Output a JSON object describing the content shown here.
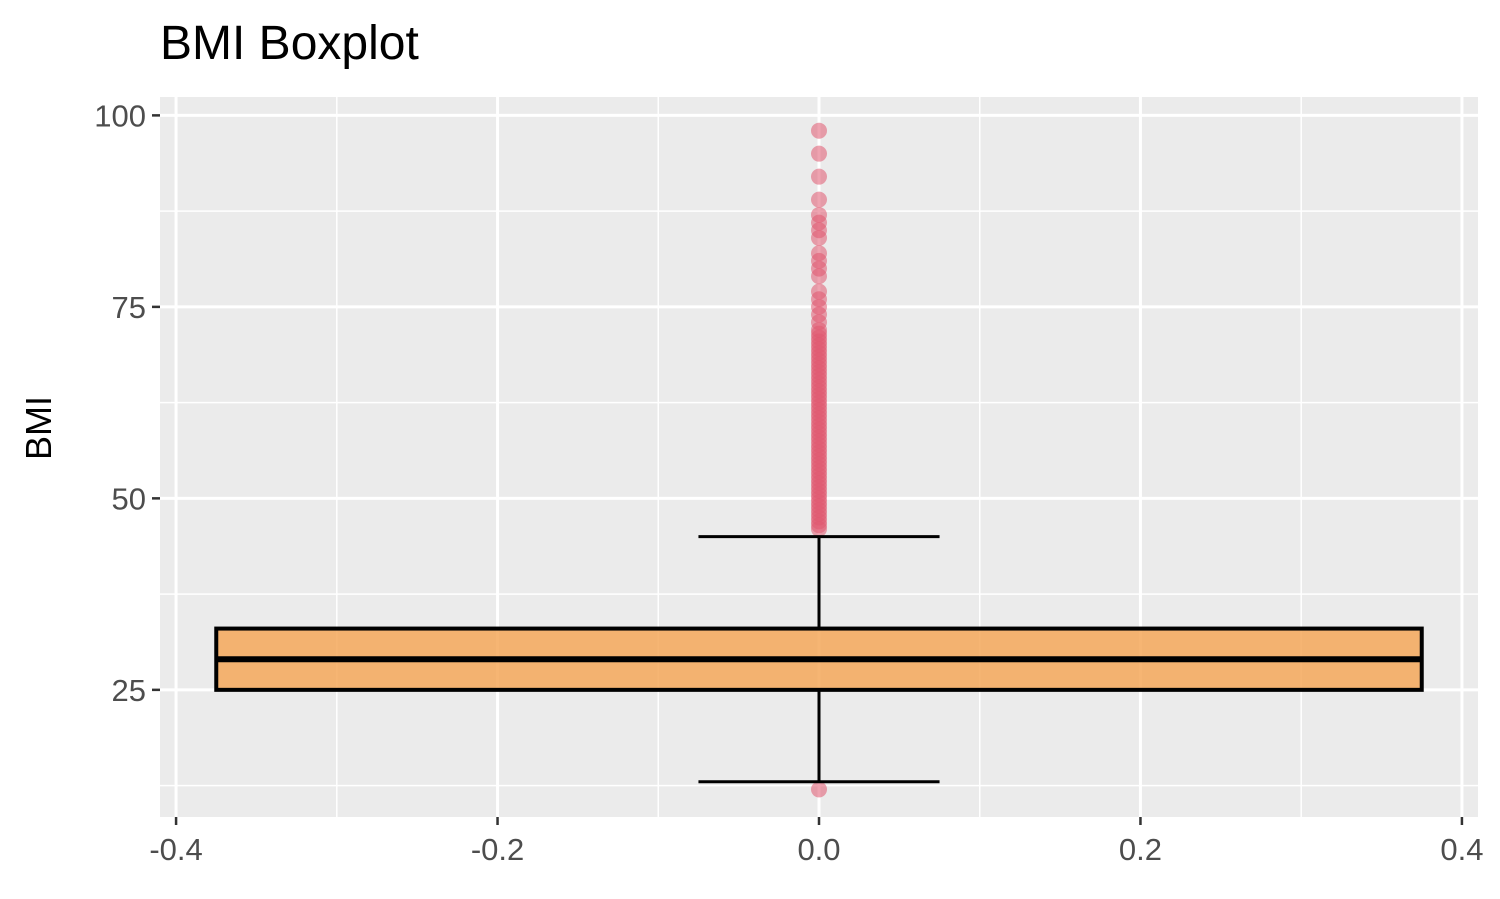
{
  "chart_data": {
    "type": "boxplot",
    "title": "BMI Boxplot",
    "xlabel": "",
    "ylabel": "BMI",
    "xlim": [
      -0.41,
      0.41
    ],
    "ylim": [
      8.4,
      102.4
    ],
    "x_ticks": [
      -0.4,
      -0.2,
      0.0,
      0.2,
      0.4
    ],
    "x_tick_labels": [
      "-0.4",
      "-0.2",
      "0.0",
      "0.2",
      "0.4"
    ],
    "y_ticks": [
      25,
      50,
      75,
      100
    ],
    "y_tick_labels": [
      "25",
      "50",
      "75",
      "100"
    ],
    "grid": true,
    "box": {
      "x_center": 0.0,
      "x_min": -0.375,
      "x_max": 0.375,
      "q1": 25,
      "median": 29,
      "q3": 33,
      "whisker_low": 13,
      "whisker_high": 45,
      "whisker_cap_halfwidth": 0.075,
      "fill": "#f5a85a",
      "stroke": "#000000"
    },
    "outliers": {
      "x": 0.0,
      "values": [
        12,
        46,
        46.5,
        47,
        47.5,
        48,
        48.5,
        49,
        49.5,
        50,
        50.5,
        51,
        51.5,
        52,
        52.5,
        53,
        53.5,
        54,
        54.5,
        55,
        55.5,
        56,
        56.5,
        57,
        57.5,
        58,
        58.5,
        59,
        59.5,
        60,
        60.5,
        61,
        61.5,
        62,
        62.5,
        63,
        63.5,
        64,
        64.5,
        65,
        65.5,
        66,
        66.5,
        67,
        67.5,
        68,
        68.5,
        69,
        69.5,
        70,
        70.5,
        71,
        71.5,
        72,
        73,
        74,
        75,
        76,
        77,
        79,
        80,
        81,
        82,
        84,
        85,
        86,
        87,
        89,
        92,
        95,
        98
      ],
      "color": "#e05870"
    },
    "colors": {
      "panel_bg": "#ebebeb",
      "grid_major": "#ffffff",
      "outlier": "#e05870",
      "box_fill": "#f5a85a"
    }
  }
}
